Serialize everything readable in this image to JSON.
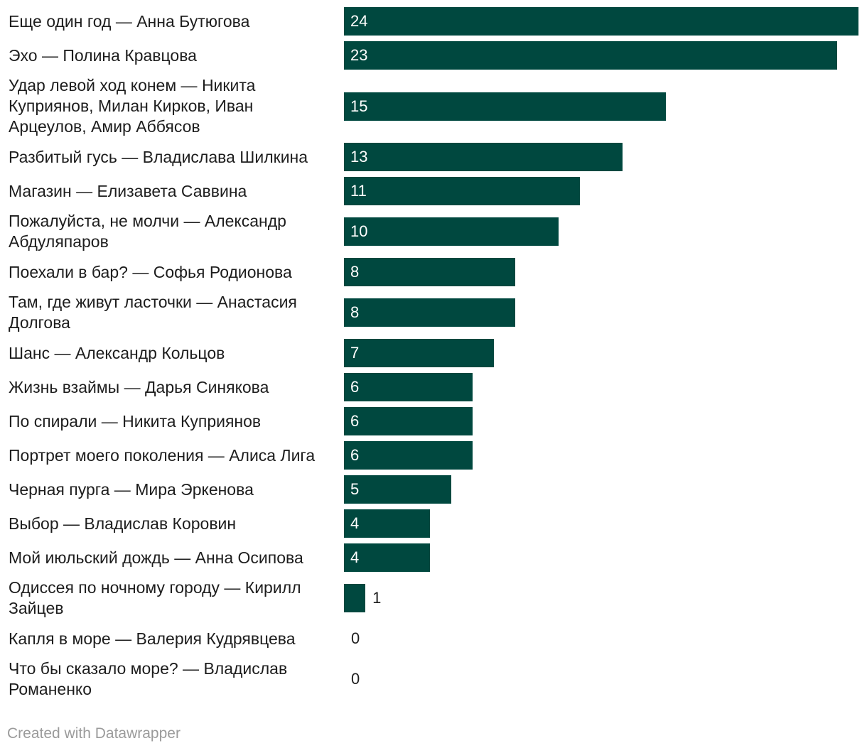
{
  "chart_data": {
    "type": "bar",
    "orientation": "horizontal",
    "title": "",
    "xlabel": "",
    "ylabel": "",
    "xlim": [
      0,
      24
    ],
    "bar_color": "#00483f",
    "categories": [
      "Еще один год — Анна Бутюгова",
      "Эхо — Полина Кравцова",
      "Удар левой ход конем — Никита Куприянов, Милан Кирков, Иван Арцеулов, Амир Аббясов",
      "Разбитый гусь — Владислава Шилкина",
      "Магазин — Елизавета Саввина",
      "Пожалуйста, не молчи — Александр Абдуляпаров",
      "Поехали в бар? — Софья Родионова",
      "Там, где живут ласточки — Анастасия Долгова",
      "Шанс — Александр Кольцов",
      "Жизнь взаймы — Дарья Синякова",
      "По спирали — Никита Куприянов",
      "Портрет моего поколения — Алиса Лига",
      "Черная пурга — Мира Эркенова",
      "Выбор — Владислав Коровин",
      "Мой июльский дождь — Анна Осипова",
      "Одиссея по ночному городу — Кирилл Зайцев",
      "Капля в море — Валерия Кудрявцева",
      "Что бы сказало море? — Владислав Романенко"
    ],
    "values": [
      24,
      23,
      15,
      13,
      11,
      10,
      8,
      8,
      7,
      6,
      6,
      6,
      5,
      4,
      4,
      1,
      0,
      0
    ]
  },
  "footer": {
    "credit": "Created with Datawrapper"
  }
}
